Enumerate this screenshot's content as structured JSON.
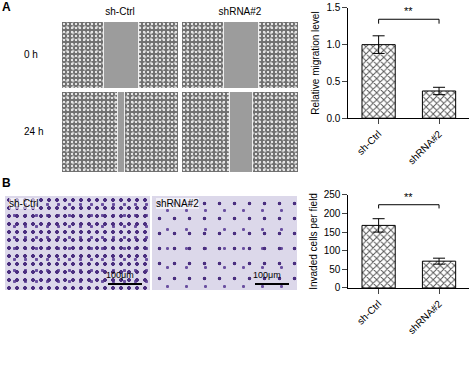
{
  "figure": {
    "panels": [
      {
        "label": "A",
        "rows": [
          "0 h",
          "24 h"
        ],
        "columns": [
          "sh-Ctrl",
          "shRNA#2"
        ]
      },
      {
        "label": "B",
        "columns": [
          "sh-Ctrl",
          "shRNA#2"
        ],
        "scale_bar": "100μm"
      }
    ]
  },
  "chart_data": [
    {
      "type": "bar",
      "categories": [
        "sh-Ctrl",
        "shRNA#2"
      ],
      "values": [
        1.0,
        0.37
      ],
      "errors": [
        0.12,
        0.05
      ],
      "color": "#555555",
      "ylabel": "Relative migration level",
      "ylim": [
        0,
        1.5
      ],
      "yticks": [
        {
          "value": 0,
          "label": "0.0"
        },
        {
          "value": 0.5,
          "label": "0.5"
        },
        {
          "value": 1,
          "label": "1.0"
        },
        {
          "value": 1.5,
          "label": "1.5"
        }
      ],
      "significance": "**",
      "grid": false
    },
    {
      "type": "bar",
      "categories": [
        "sh-Ctrl",
        "shRNA#2"
      ],
      "values": [
        168,
        72
      ],
      "errors": [
        18,
        8
      ],
      "color": "#555555",
      "ylabel": "Invaded cells per field",
      "ylim": [
        0,
        250
      ],
      "yticks": [
        0,
        50,
        100,
        150,
        200,
        250
      ],
      "significance": "**",
      "grid": false
    }
  ]
}
